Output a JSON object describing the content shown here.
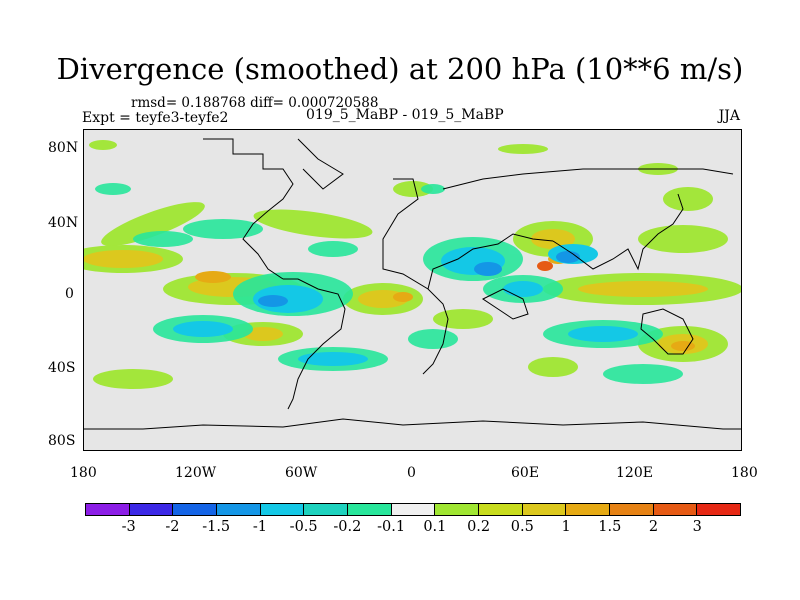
{
  "title": "Divergence (smoothed) at 200 hPa (10**6 m/s)",
  "stats": "rmsd= 0.188768 diff= 0.000720588",
  "experiment": "Expt = teyfe3-teyfe2",
  "subtitle": "019_5_MaBP - 019_5_MaBP",
  "season": "JJA",
  "map": {
    "x_ticks": [
      "180",
      "120W",
      "60W",
      "0",
      "60E",
      "120E",
      "180"
    ],
    "y_ticks": [
      "80N",
      "40N",
      "0",
      "40S",
      "80S"
    ],
    "background": "#e6e6e6"
  },
  "colorbar": {
    "colors": [
      "#8c1ee6",
      "#3c28e6",
      "#1464e6",
      "#1496e6",
      "#14c8e6",
      "#1ed2be",
      "#28e69b",
      "#f0f0f0",
      "#a0e632",
      "#c8dc1e",
      "#dcc81e",
      "#e6aa14",
      "#e68214",
      "#e65a14",
      "#e62814"
    ],
    "labels": [
      "-3",
      "-2",
      "-1.5",
      "-1",
      "-0.5",
      "-0.2",
      "-0.1",
      "0.1",
      "0.2",
      "0.5",
      "1",
      "1.5",
      "2",
      "3"
    ]
  }
}
